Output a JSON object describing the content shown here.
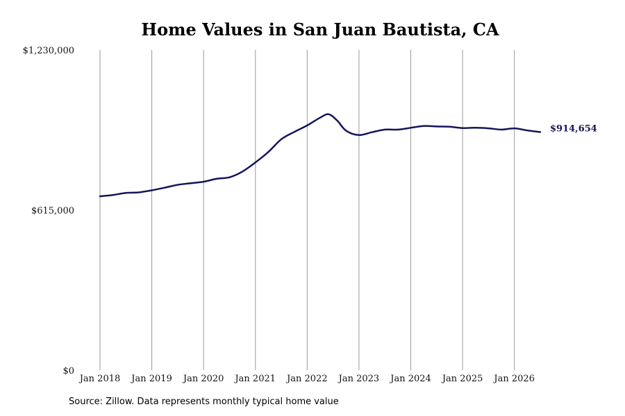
{
  "chart_data": {
    "type": "line",
    "title": "Home Values in San Juan Bautista, CA",
    "y_ticks": [
      {
        "value": 0,
        "label": "$0"
      },
      {
        "value": 615000,
        "label": "$615,000"
      },
      {
        "value": 1230000,
        "label": "$1,230,000"
      }
    ],
    "ylim": [
      0,
      1230000
    ],
    "x_ticks": [
      "Jan 2018",
      "Jan 2019",
      "Jan 2020",
      "Jan 2021",
      "Jan 2022",
      "Jan 2023",
      "Jan 2024",
      "Jan 2025",
      "Jan 2026"
    ],
    "xlim": [
      "2018-01",
      "2026-07"
    ],
    "grid": {
      "vertical": true,
      "horizontal": false
    },
    "line_color": "#14145a",
    "series": [
      {
        "x": [
          "2018-01",
          "2018-04",
          "2018-07",
          "2018-10",
          "2019-01",
          "2019-04",
          "2019-07",
          "2019-10",
          "2020-01",
          "2020-04",
          "2020-07",
          "2020-10",
          "2021-01",
          "2021-04",
          "2021-07",
          "2021-10",
          "2022-01",
          "2022-04",
          "2022-06",
          "2022-08",
          "2022-10",
          "2023-01",
          "2023-04",
          "2023-07",
          "2023-10",
          "2024-01",
          "2024-04",
          "2024-07",
          "2024-10",
          "2025-01",
          "2025-04",
          "2025-07",
          "2025-10",
          "2026-01",
          "2026-04",
          "2026-07"
        ],
        "values": [
          668000,
          673000,
          681000,
          683000,
          691000,
          701000,
          712000,
          718000,
          724000,
          735000,
          741000,
          763000,
          798000,
          838000,
          887000,
          915000,
          940000,
          970000,
          983000,
          958000,
          920000,
          903000,
          914000,
          924000,
          924000,
          931000,
          938000,
          936000,
          935000,
          930000,
          931000,
          929000,
          924000,
          929000,
          921000,
          914654
        ]
      }
    ],
    "end_label": "$914,654"
  },
  "source_note": "Source: Zillow. Data represents monthly typical home value"
}
